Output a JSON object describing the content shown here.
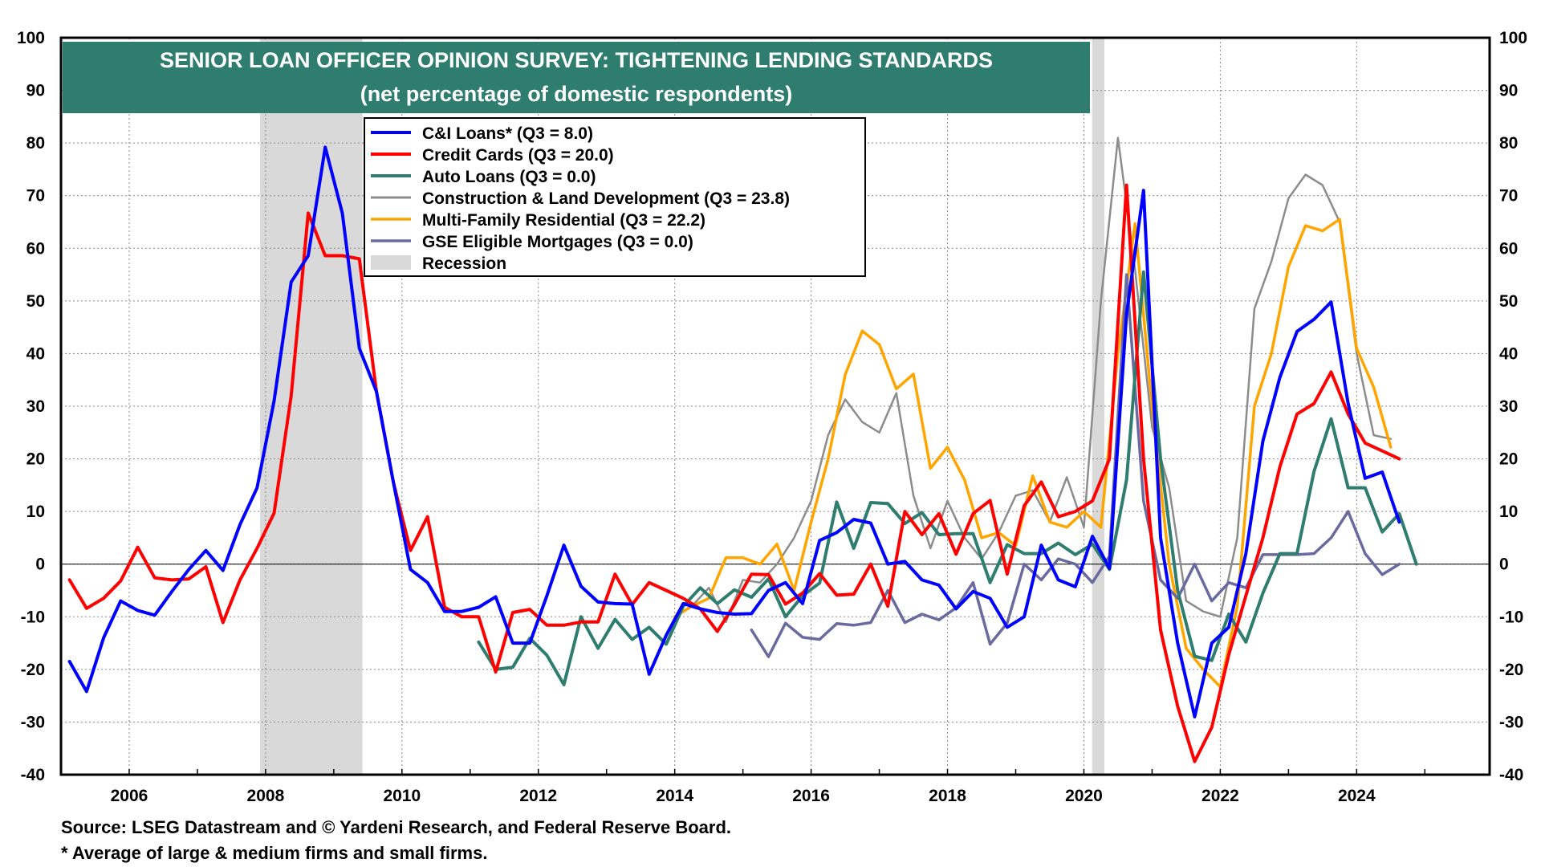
{
  "chart_data": {
    "type": "line",
    "title": "SENIOR LOAN OFFICER OPINION SURVEY: TIGHTENING LENDING STANDARDS",
    "subtitle": "(net percentage of domestic respondents)",
    "ylim": [
      -40,
      100
    ],
    "xlim": [
      2005.0,
      2025.95
    ],
    "y_ticks": [
      100,
      90,
      80,
      70,
      60,
      50,
      40,
      30,
      20,
      10,
      0,
      -10,
      -20,
      -30,
      -40
    ],
    "x_ticks": [
      "2006",
      "2008",
      "2010",
      "2012",
      "2014",
      "2016",
      "2018",
      "2020",
      "2022",
      "2024"
    ],
    "grid": true,
    "legend_position": "top-left",
    "recessions": [
      {
        "start": 2007.92,
        "end": 2009.42
      },
      {
        "start": 2020.12,
        "end": 2020.3
      }
    ],
    "recession_label": "Recession",
    "series": [
      {
        "name": "C&I Loans* (Q3 = 8.0)",
        "color": "#0000ff",
        "width": 4,
        "start": 2005.125,
        "values": [
          -18.5,
          -24.2,
          -14.0,
          -7.0,
          -8.8,
          -9.7,
          -5.2,
          -1.0,
          2.6,
          -1.2,
          7.5,
          14.5,
          31.0,
          53.6,
          58.6,
          79.2,
          66.7,
          41.0,
          32.8,
          15.5,
          -1.0,
          -3.5,
          -9.0,
          -9.0,
          -8.2,
          -6.2,
          -15.0,
          -15.0,
          -6.0,
          3.6,
          -4.2,
          -7.2,
          -7.5,
          -7.6,
          -20.9,
          -13.5,
          -7.5,
          -8.5,
          -9.2,
          -9.5,
          -9.4,
          -5.0,
          -3.5,
          -7.5,
          4.5,
          6.0,
          8.5,
          7.8,
          0.0,
          0.5,
          -3.0,
          -4.0,
          -8.5,
          -5.2,
          -6.5,
          -12.0,
          -10.0,
          3.6,
          -3.0,
          -4.3,
          5.3,
          -0.8,
          47.5,
          71.0,
          5.0,
          -15.0,
          -29.0,
          -15.0,
          -12.0,
          2.0,
          23.4,
          35.5,
          44.2,
          46.5,
          49.8,
          30.5,
          16.3,
          17.5,
          8.0
        ]
      },
      {
        "name": "Credit Cards (Q3 = 20.0)",
        "color": "#ff0000",
        "width": 4,
        "start": 2005.125,
        "values": [
          -3.0,
          -8.4,
          -6.5,
          -3.2,
          3.2,
          -2.6,
          -3.0,
          -2.8,
          -0.5,
          -11.1,
          -3.0,
          3.0,
          9.7,
          32.0,
          66.7,
          58.6,
          58.6,
          58.0,
          32.8,
          15.5,
          2.6,
          9.0,
          -8.2,
          -10.0,
          -10.0,
          -20.5,
          -9.2,
          -8.6,
          -11.6,
          -11.6,
          -11.0,
          -11.0,
          -1.9,
          -7.7,
          -3.5,
          -5.0,
          -6.5,
          -8.5,
          -12.8,
          -7.7,
          -1.9,
          -2.0,
          -7.6,
          -5.5,
          -1.8,
          -5.9,
          -5.7,
          0.0,
          -8.0,
          10.0,
          5.6,
          9.6,
          1.9,
          9.6,
          12.1,
          -1.9,
          11.1,
          15.6,
          9.0,
          10.0,
          12.0,
          20.0,
          72.0,
          20.0,
          -12.5,
          -27.0,
          -37.5,
          -31.0,
          -17.2,
          -6.0,
          5.0,
          18.5,
          28.5,
          30.5,
          36.5,
          28.5,
          23.0,
          21.5,
          20.0
        ]
      },
      {
        "name": "Auto Loans (Q3 = 0.0)",
        "color": "#2e7d6e",
        "width": 4,
        "start": 2011.125,
        "values": [
          -14.8,
          -20.0,
          -19.6,
          -14.1,
          -17.3,
          -22.9,
          -10.0,
          -16.0,
          -10.5,
          -14.3,
          -12.0,
          -15.2,
          -8.0,
          -4.5,
          -7.5,
          -4.9,
          -6.3,
          -2.8,
          -10.0,
          -6.0,
          -3.6,
          11.8,
          3.0,
          11.7,
          11.5,
          7.7,
          9.8,
          5.6,
          5.8,
          5.8,
          -3.5,
          3.7,
          2.0,
          2.0,
          4.0,
          1.8,
          3.8,
          -1.0,
          16.0,
          55.5,
          20.0,
          -5.0,
          -17.5,
          -18.3,
          -9.5,
          -14.8,
          -5.5,
          2.0,
          2.0,
          17.6,
          27.6,
          14.5,
          14.5,
          6.1,
          9.6,
          0.0
        ]
      },
      {
        "name": "Construction & Land Development (Q3 = 23.8)",
        "color": "#8c8c8c",
        "width": 2.5,
        "start": 2014.0,
        "values": [
          -10.0,
          -8.0,
          -4.5,
          -11.0,
          -3.0,
          -3.5,
          0.0,
          5.0,
          12.0,
          24.5,
          31.3,
          27.0,
          25.0,
          32.5,
          13.0,
          3.0,
          12.0,
          5.0,
          1.0,
          6.0,
          13.0,
          14.0,
          8.0,
          16.5,
          7.0,
          50.0,
          81.0,
          56.0,
          26.0,
          14.5,
          -7.0,
          -9.0,
          -10.0,
          5.0,
          48.5,
          57.5,
          69.5,
          74.0,
          72.0,
          65.0,
          40.0,
          24.5,
          23.8
        ]
      },
      {
        "name": "Multi-Family Residential (Q3 = 22.2)",
        "color": "#ffa500",
        "width": 3.5,
        "start": 2014.0,
        "values": [
          -10.0,
          -8.0,
          -6.5,
          1.2,
          1.2,
          0.0,
          3.8,
          -5.0,
          8.0,
          20.0,
          36.0,
          44.3,
          41.7,
          33.3,
          36.1,
          18.2,
          22.2,
          16.0,
          5.0,
          6.0,
          3.5,
          16.8,
          8.0,
          7.0,
          10.0,
          7.0,
          40.0,
          64.7,
          30.0,
          0.0,
          -16.0,
          -20.0,
          -23.3,
          -8.0,
          30.0,
          40.0,
          56.5,
          64.3,
          63.3,
          65.5,
          41.0,
          33.6,
          22.2
        ]
      },
      {
        "name": "GSE Eligible Mortgages (Q3 = 0.0)",
        "color": "#6a6aa0",
        "width": 3.5,
        "start": 2015.125,
        "values": [
          -12.5,
          -17.6,
          -11.2,
          -13.9,
          -14.3,
          -11.3,
          -11.6,
          -11.1,
          -5.0,
          -11.1,
          -9.5,
          -10.6,
          -8.3,
          -3.5,
          -15.2,
          -11.2,
          0.0,
          -3.0,
          1.0,
          0.0,
          -3.5,
          1.5,
          55.0,
          12.0,
          -3.0,
          -6.5,
          0.0,
          -7.0,
          -3.5,
          -4.5,
          1.8,
          1.8,
          1.8,
          2.0,
          5.0,
          10.0,
          2.0,
          -2.0,
          0.0
        ]
      }
    ]
  },
  "footer": {
    "source": "Source: LSEG Datastream and © Yardeni Research, and Federal Reserve Board.",
    "note": "* Average of large & medium firms and small firms."
  }
}
